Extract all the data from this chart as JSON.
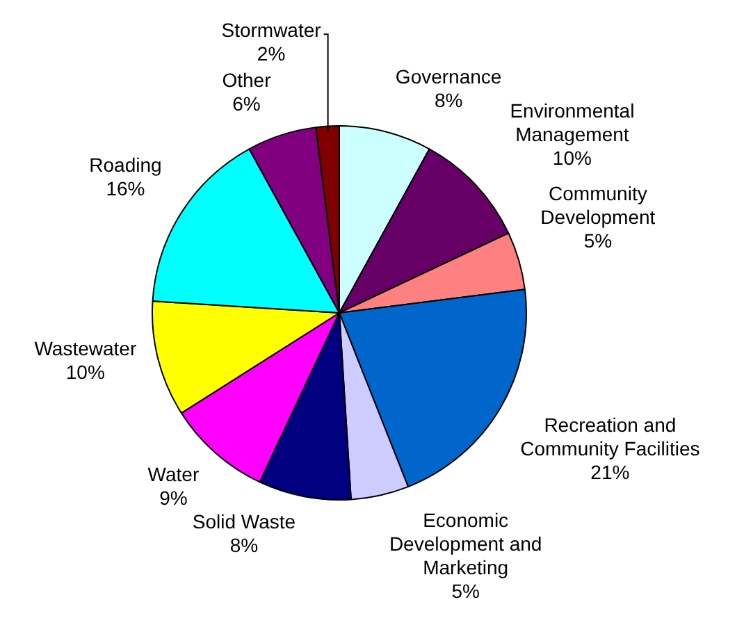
{
  "chart_data": {
    "type": "pie",
    "categories": [
      "Governance",
      "Environmental Management",
      "Community Development",
      "Recreation and Community Facilities",
      "Economic Development and Marketing",
      "Solid Waste",
      "Water",
      "Wastewater",
      "Roading",
      "Other",
      "Stormwater"
    ],
    "values": [
      8,
      10,
      5,
      21,
      5,
      8,
      9,
      10,
      16,
      6,
      2
    ],
    "value_labels": [
      "8%",
      "10%",
      "5%",
      "21%",
      "5%",
      "8%",
      "9%",
      "10%",
      "16%",
      "6%",
      "2%"
    ],
    "colors": [
      "#ccffff",
      "#660066",
      "#ff8080",
      "#0066cc",
      "#ccccff",
      "#000080",
      "#ff00ff",
      "#ffff00",
      "#00ffff",
      "#800080",
      "#800000"
    ],
    "legend": false
  }
}
